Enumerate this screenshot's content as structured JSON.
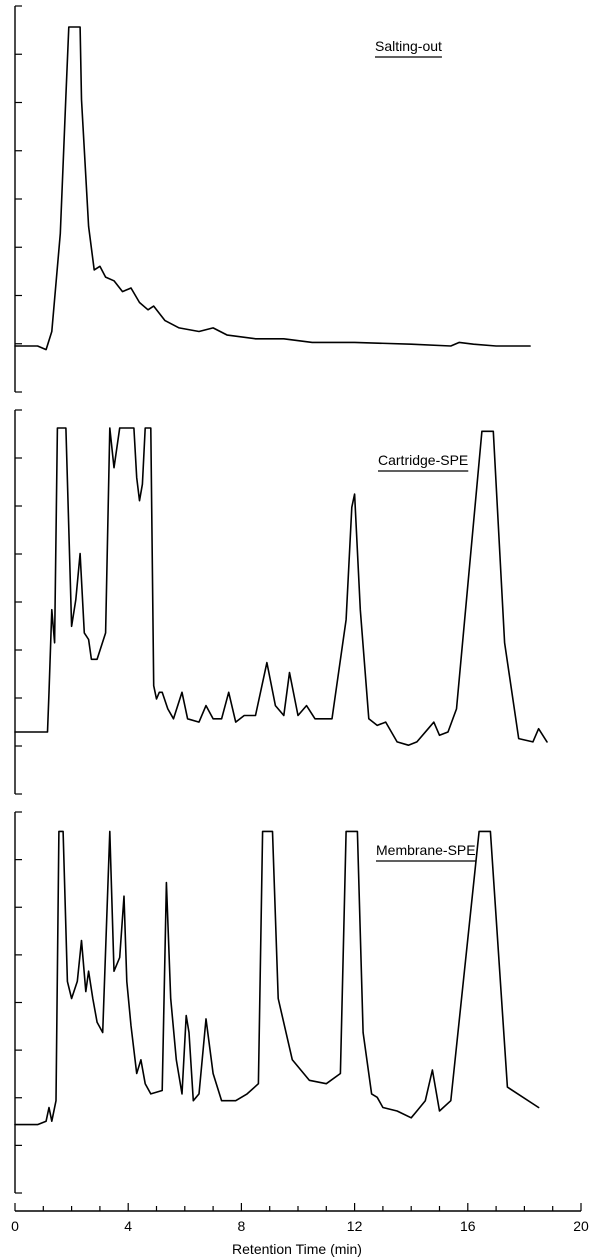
{
  "chart_data": {
    "type": "line",
    "xlabel": "Retention Time (min)",
    "xlim": [
      0,
      20
    ],
    "x_ticks": [
      0,
      4,
      8,
      12,
      16,
      20
    ],
    "y_ticks_per_panel": 8,
    "grid": false,
    "line_color": "#000000",
    "panels": [
      {
        "title": "Salting-out",
        "baseline": 0.12,
        "series": [
          {
            "x": [
              0,
              0.8,
              1.1,
              1.3,
              1.6,
              1.8,
              1.9,
              2.3,
              2.35,
              2.6,
              2.8,
              3.0,
              3.2,
              3.5,
              3.8,
              4.1,
              4.4,
              4.7,
              4.9,
              5.3,
              5.8,
              6.5,
              7.0,
              7.5,
              8.5,
              9.5,
              10.5,
              12.0,
              14.0,
              15.4,
              15.7,
              16.2,
              17.0,
              18.2
            ],
            "y": [
              0.12,
              0.12,
              0.11,
              0.16,
              0.43,
              0.81,
              1.0,
              1.0,
              0.8,
              0.45,
              0.33,
              0.34,
              0.31,
              0.3,
              0.27,
              0.28,
              0.24,
              0.22,
              0.23,
              0.19,
              0.17,
              0.16,
              0.17,
              0.15,
              0.14,
              0.14,
              0.13,
              0.13,
              0.125,
              0.12,
              0.13,
              0.125,
              0.12,
              0.12
            ]
          }
        ]
      },
      {
        "title": "Cartridge-SPE",
        "baseline": 0.08,
        "series": [
          {
            "x": [
              0,
              1.0,
              1.15,
              1.2,
              1.3,
              1.4,
              1.5,
              1.8,
              2.0,
              2.15,
              2.3,
              2.45,
              2.6,
              2.7,
              2.9,
              3.2,
              3.35,
              3.5,
              3.7,
              3.8,
              4.2,
              4.3,
              4.4,
              4.5,
              4.6,
              4.8,
              4.9,
              5.0,
              5.1,
              5.2,
              5.4,
              5.6,
              5.9,
              6.1,
              6.5,
              6.75,
              7.0,
              7.3,
              7.55,
              7.8,
              8.1,
              8.5,
              8.9,
              9.2,
              9.5,
              9.7,
              10.0,
              10.3,
              10.6,
              11.2,
              11.7,
              11.9,
              12.0,
              12.2,
              12.5,
              12.8,
              13.1,
              13.5,
              13.9,
              14.2,
              14.6,
              14.8,
              15.0,
              15.3,
              15.6,
              16.5,
              16.7,
              16.9,
              17.3,
              17.8,
              18.3,
              18.5,
              18.8
            ],
            "y": [
              0.08,
              0.08,
              0.08,
              0.2,
              0.45,
              0.35,
              1.0,
              1.0,
              0.4,
              0.48,
              0.62,
              0.38,
              0.36,
              0.3,
              0.3,
              0.38,
              1.0,
              0.88,
              1.0,
              1.0,
              1.0,
              0.85,
              0.78,
              0.83,
              1.0,
              1.0,
              0.22,
              0.18,
              0.2,
              0.2,
              0.15,
              0.12,
              0.2,
              0.12,
              0.11,
              0.16,
              0.12,
              0.12,
              0.2,
              0.11,
              0.13,
              0.13,
              0.29,
              0.16,
              0.13,
              0.26,
              0.13,
              0.16,
              0.12,
              0.12,
              0.42,
              0.76,
              0.8,
              0.45,
              0.12,
              0.1,
              0.11,
              0.05,
              0.04,
              0.05,
              0.09,
              0.11,
              0.07,
              0.08,
              0.15,
              0.99,
              0.99,
              0.99,
              0.35,
              0.06,
              0.05,
              0.09,
              0.05
            ]
          }
        ]
      },
      {
        "title": "Membrane-SPE",
        "baseline": 0.12,
        "series": [
          {
            "x": [
              0,
              0.8,
              1.1,
              1.2,
              1.3,
              1.45,
              1.55,
              1.7,
              1.85,
              2.0,
              2.2,
              2.35,
              2.5,
              2.6,
              2.75,
              2.9,
              3.1,
              3.35,
              3.5,
              3.7,
              3.85,
              3.95,
              4.1,
              4.3,
              4.45,
              4.6,
              4.8,
              5.2,
              5.35,
              5.5,
              5.7,
              5.9,
              6.05,
              6.15,
              6.3,
              6.5,
              6.75,
              7.0,
              7.3,
              7.8,
              8.2,
              8.6,
              8.75,
              9.1,
              9.3,
              9.8,
              10.4,
              11.0,
              11.5,
              11.7,
              12.1,
              12.3,
              12.6,
              12.8,
              13.0,
              13.5,
              14.0,
              14.2,
              14.5,
              14.75,
              15.0,
              15.4,
              16.4,
              16.8,
              17.4,
              18.5
            ],
            "y": [
              0.13,
              0.13,
              0.14,
              0.18,
              0.14,
              0.2,
              0.99,
              0.99,
              0.55,
              0.5,
              0.55,
              0.67,
              0.52,
              0.58,
              0.5,
              0.43,
              0.4,
              0.99,
              0.58,
              0.62,
              0.8,
              0.55,
              0.42,
              0.28,
              0.32,
              0.25,
              0.22,
              0.23,
              0.84,
              0.5,
              0.32,
              0.22,
              0.45,
              0.4,
              0.2,
              0.22,
              0.44,
              0.28,
              0.2,
              0.2,
              0.22,
              0.25,
              0.99,
              0.99,
              0.5,
              0.32,
              0.26,
              0.25,
              0.28,
              0.99,
              0.99,
              0.4,
              0.22,
              0.21,
              0.18,
              0.17,
              0.15,
              0.17,
              0.2,
              0.29,
              0.17,
              0.2,
              0.99,
              0.99,
              0.24,
              0.18
            ]
          }
        ]
      }
    ]
  }
}
